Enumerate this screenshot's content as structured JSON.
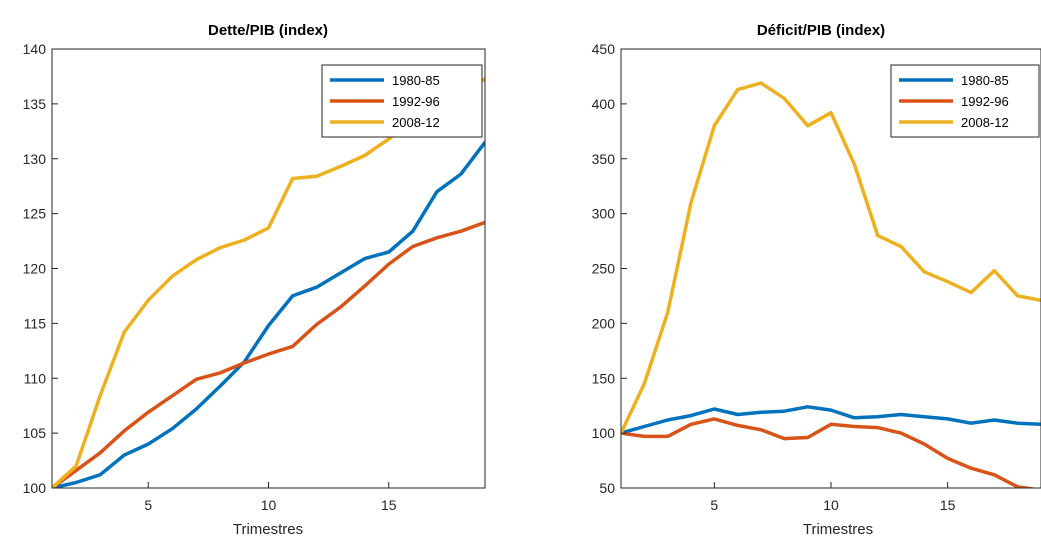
{
  "colors": {
    "s1": "#0072BD",
    "s2": "#D95319",
    "s3": "#EDB120",
    "axis": "#262626"
  },
  "chart_data": [
    {
      "type": "line",
      "title": "Dette/PIB (index)",
      "xlabel": "Trimestres",
      "ylabel": "",
      "xlim": [
        1,
        19
      ],
      "ylim": [
        100,
        140
      ],
      "xticks": [
        5,
        10,
        15
      ],
      "yticks": [
        100,
        105,
        110,
        115,
        120,
        125,
        130,
        135,
        140
      ],
      "legend_position": "top-right",
      "x": [
        1,
        2,
        3,
        4,
        5,
        6,
        7,
        8,
        9,
        10,
        11,
        12,
        13,
        14,
        15,
        16,
        17,
        18,
        19
      ],
      "series": [
        {
          "name": "1980-85",
          "values": [
            100,
            100.5,
            101.2,
            103,
            104,
            105.4,
            107.2,
            109.3,
            111.5,
            114.8,
            117.5,
            118.3,
            119.6,
            120.9,
            121.5,
            123.4,
            127,
            128.6,
            131.5
          ]
        },
        {
          "name": "1992-96",
          "values": [
            100,
            101.6,
            103.2,
            105.2,
            106.9,
            108.4,
            109.9,
            110.5,
            111.4,
            112.2,
            112.9,
            114.9,
            116.5,
            118.4,
            120.4,
            122.0,
            122.8,
            123.4,
            124.2
          ]
        },
        {
          "name": "2008-12",
          "values": [
            100,
            102,
            108.4,
            114.2,
            117.1,
            119.3,
            120.8,
            121.9,
            122.6,
            123.7,
            128.2,
            128.4,
            129.3,
            130.3,
            131.8,
            133.5,
            134.5,
            135.5,
            137.3
          ]
        }
      ]
    },
    {
      "type": "line",
      "title": "Déficit/PIB (index)",
      "xlabel": "Trimestres",
      "ylabel": "",
      "xlim": [
        1,
        19
      ],
      "ylim": [
        50,
        450
      ],
      "xticks": [
        5,
        10,
        15
      ],
      "yticks": [
        50,
        100,
        150,
        200,
        250,
        300,
        350,
        400,
        450
      ],
      "legend_position": "top-right",
      "x": [
        1,
        2,
        3,
        4,
        5,
        6,
        7,
        8,
        9,
        10,
        11,
        12,
        13,
        14,
        15,
        16,
        17,
        18,
        19
      ],
      "series": [
        {
          "name": "1980-85",
          "values": [
            100,
            106,
            112,
            116,
            122,
            117,
            119,
            120,
            124,
            121,
            114,
            115,
            117,
            115,
            113,
            109,
            112,
            109,
            108
          ]
        },
        {
          "name": "1992-96",
          "values": [
            100,
            97,
            97,
            108,
            113,
            107,
            103,
            95,
            96,
            108,
            106,
            105,
            100,
            90,
            77,
            68,
            62,
            51,
            48
          ]
        },
        {
          "name": "2008-12",
          "values": [
            100,
            145,
            210,
            310,
            380,
            413,
            419,
            405,
            380,
            392,
            345,
            280,
            270,
            247,
            238,
            228,
            248,
            225,
            221
          ]
        }
      ]
    }
  ]
}
